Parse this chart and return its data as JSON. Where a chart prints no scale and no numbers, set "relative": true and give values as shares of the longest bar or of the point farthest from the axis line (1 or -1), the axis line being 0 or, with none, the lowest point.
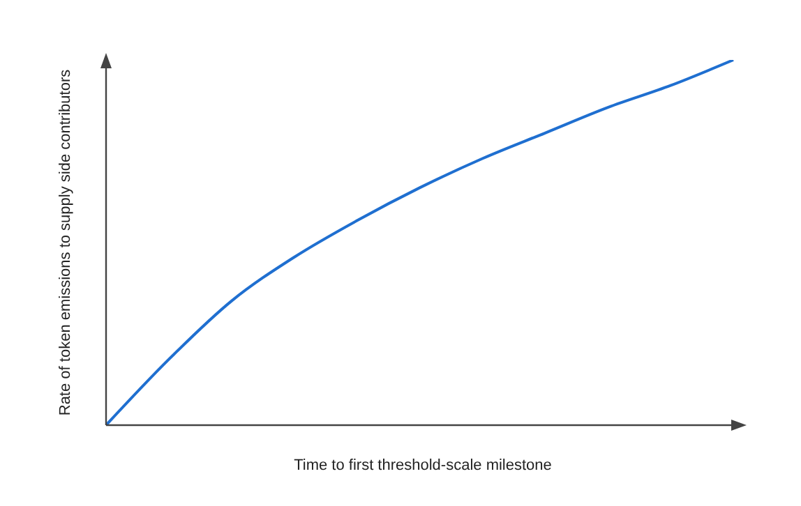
{
  "chart_data": {
    "type": "line",
    "relative": true,
    "xlabel": "Time to first threshold-scale milestone",
    "ylabel": "Rate of token emissions to supply side contributors",
    "categories": [
      null,
      null,
      null,
      null,
      null,
      null,
      null,
      null,
      null,
      null,
      null
    ],
    "series": [
      {
        "color": "#1f6fd0",
        "values": [
          0,
          0.18,
          0.34,
          0.46,
          0.56,
          0.65,
          0.73,
          0.8,
          0.87,
          0.93,
          1.0
        ]
      }
    ],
    "grid": false,
    "legend": false,
    "marker": "none",
    "line_style": "solid"
  }
}
